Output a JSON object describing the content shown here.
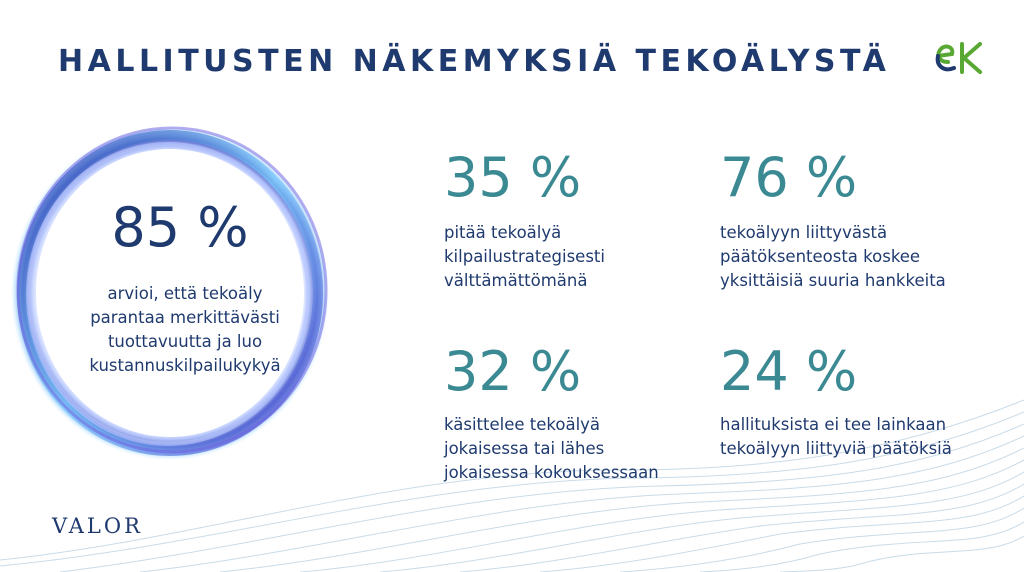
{
  "title": "HALLITUSTEN NÄKEMYKSIÄ TEKOÄLYSTÄ",
  "logo": {
    "text": "ek",
    "icon": "ek-logo-icon",
    "color_primary": "#5aa834",
    "color_secondary": "#1f3a6e"
  },
  "highlight": {
    "value": "85 %",
    "description": "arvioi, että tekoäly parantaa merkittävästi tuottavuutta ja luo kustannuskilpailukykyä"
  },
  "stats": [
    {
      "value": "35 %",
      "description": "pitää tekoälyä kilpailustrategisesti välttämättömänä"
    },
    {
      "value": "76 %",
      "description": "tekoälyyn liittyvästä päätöksenteosta koskee yksittäisiä suuria hankkeita"
    },
    {
      "value": "32 %",
      "description": "käsittelee tekoälyä jokaisessa tai lähes jokaisessa kokouksessaan"
    },
    {
      "value": "24 %",
      "description": "hallituksista ei tee lainkaan tekoälyyn liittyviä päätöksiä"
    }
  ],
  "footer_brand": "VALOR",
  "colors": {
    "title": "#1f3a6e",
    "stat_accent": "#3b8a93",
    "ring": "#3a4fc2"
  }
}
